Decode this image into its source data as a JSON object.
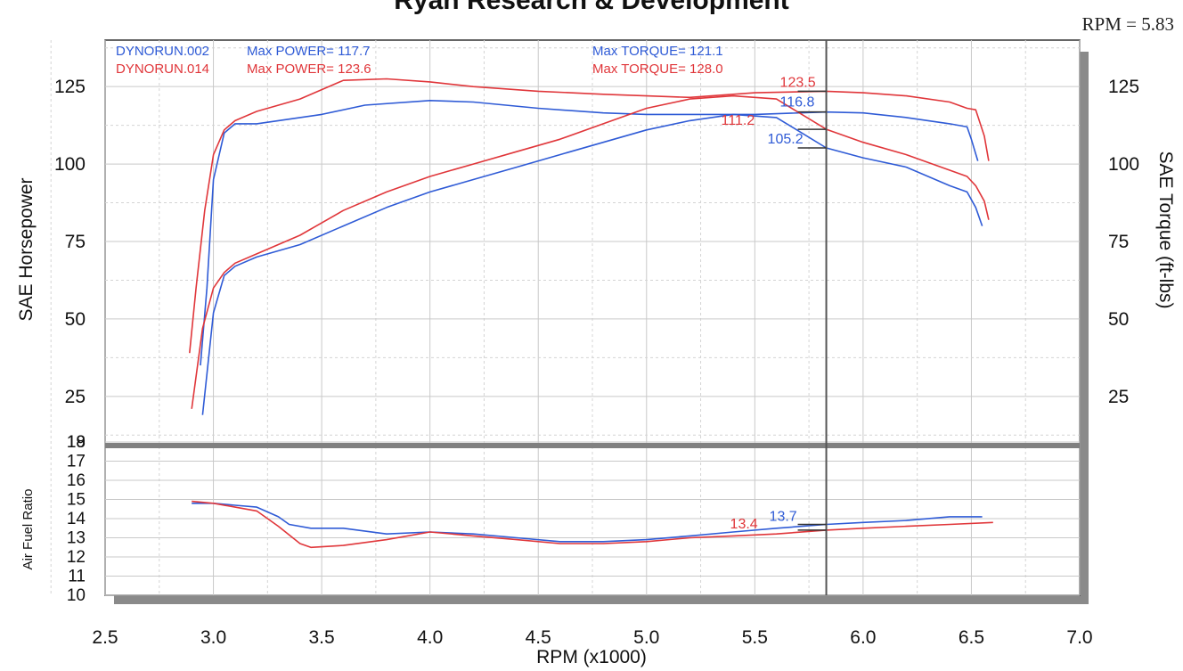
{
  "page": {
    "title": "Ryan Research & Development",
    "rpm_readout": "RPM = 5.83"
  },
  "colors": {
    "run_002": "#2f5bd6",
    "run_014": "#e0363a",
    "shadow": "#8a8a8a",
    "cursor": "#555555"
  },
  "chart_data": [
    {
      "type": "line",
      "panel": "power-torque",
      "xlabel": "RPM (x1000)",
      "ylabel": "SAE Horsepower",
      "ylabel_right": "SAE Torque (ft-lbs)",
      "xlim": [
        2.5,
        7.0
      ],
      "ylim": [
        10,
        140
      ],
      "x_ticks": [
        "2.5",
        "3.0",
        "3.5",
        "4.0",
        "4.5",
        "5.0",
        "5.5",
        "6.0",
        "6.5",
        "7.0"
      ],
      "y_ticks": [
        "25",
        "50",
        "75",
        "100",
        "125"
      ],
      "y_ticks_right": [
        "25",
        "50",
        "75",
        "100",
        "125"
      ],
      "cursor_rpm": 5.83,
      "grid": true,
      "legend": [
        {
          "run": "DYNORUN.002",
          "power_label": "Max POWER= 117.7",
          "torque_label": "Max TORQUE= 121.1",
          "color_key": "run_002"
        },
        {
          "run": "DYNORUN.014",
          "power_label": "Max POWER= 123.6",
          "torque_label": "Max TORQUE= 128.0",
          "color_key": "run_014"
        }
      ],
      "cursor_values": [
        {
          "text": "123.5",
          "value": 123.5,
          "color_key": "run_014"
        },
        {
          "text": "116.8",
          "value": 116.8,
          "color_key": "run_002"
        },
        {
          "text": "111.2",
          "value": 111.2,
          "color_key": "run_014"
        },
        {
          "text": "105.2",
          "value": 105.2,
          "color_key": "run_002"
        }
      ],
      "series": [
        {
          "name": "DYNORUN.002",
          "quantity": "torque",
          "color_key": "run_002",
          "x": [
            2.94,
            2.97,
            3.0,
            3.05,
            3.1,
            3.2,
            3.3,
            3.5,
            3.7,
            4.0,
            4.2,
            4.5,
            4.8,
            5.0,
            5.2,
            5.5,
            5.83,
            6.0,
            6.2,
            6.4,
            6.48,
            6.5,
            6.53
          ],
          "y": [
            35,
            60,
            95,
            110,
            113,
            113,
            114,
            116,
            119,
            120.5,
            120,
            118,
            116.5,
            116,
            116,
            116,
            116.8,
            116.5,
            115,
            113,
            112,
            108,
            101
          ]
        },
        {
          "name": "DYNORUN.014",
          "quantity": "torque",
          "color_key": "run_014",
          "x": [
            2.89,
            2.92,
            2.96,
            3.0,
            3.05,
            3.1,
            3.2,
            3.4,
            3.6,
            3.8,
            4.0,
            4.2,
            4.5,
            4.8,
            5.0,
            5.2,
            5.5,
            5.83,
            6.0,
            6.2,
            6.4,
            6.48,
            6.52,
            6.56,
            6.58
          ],
          "y": [
            39,
            60,
            85,
            103,
            111,
            114,
            117,
            121,
            127,
            127.5,
            126.5,
            125,
            123.5,
            122.5,
            122,
            121.5,
            123,
            123.5,
            123,
            122,
            120,
            118,
            117.5,
            109,
            101
          ]
        },
        {
          "name": "DYNORUN.002",
          "quantity": "power",
          "color_key": "run_002",
          "x": [
            2.95,
            3.0,
            3.05,
            3.1,
            3.2,
            3.4,
            3.6,
            3.8,
            4.0,
            4.2,
            4.4,
            4.6,
            4.8,
            5.0,
            5.2,
            5.4,
            5.6,
            5.83,
            6.0,
            6.2,
            6.4,
            6.48,
            6.52,
            6.55
          ],
          "y": [
            19,
            52,
            64,
            67,
            70,
            74,
            80,
            86,
            91,
            95,
            99,
            103,
            107,
            111,
            114,
            116,
            115,
            105.2,
            102,
            99,
            93,
            91,
            86,
            80
          ]
        },
        {
          "name": "DYNORUN.014",
          "quantity": "power",
          "color_key": "run_014",
          "x": [
            2.9,
            2.95,
            3.0,
            3.05,
            3.1,
            3.2,
            3.4,
            3.6,
            3.8,
            4.0,
            4.2,
            4.4,
            4.6,
            4.8,
            5.0,
            5.2,
            5.4,
            5.6,
            5.83,
            6.0,
            6.2,
            6.4,
            6.48,
            6.52,
            6.56,
            6.58
          ],
          "y": [
            21,
            47,
            60,
            65,
            68,
            71,
            77,
            85,
            91,
            96,
            100,
            104,
            108,
            113,
            118,
            121,
            122,
            121,
            111.2,
            107,
            103,
            98,
            96,
            93,
            88,
            82
          ]
        }
      ]
    },
    {
      "type": "line",
      "panel": "air-fuel",
      "xlabel": "RPM (x1000)",
      "ylabel": "Air Fuel Ratio",
      "xlim": [
        2.5,
        7.0
      ],
      "ylim": [
        10,
        18
      ],
      "y_ticks": [
        "10",
        "11",
        "12",
        "13",
        "14",
        "15",
        "16",
        "17",
        "18",
        "19"
      ],
      "cursor_values": [
        {
          "text": "13.4",
          "value": 13.4,
          "color_key": "run_014"
        },
        {
          "text": "13.7",
          "value": 13.7,
          "color_key": "run_002"
        }
      ],
      "series": [
        {
          "name": "DYNORUN.002",
          "color_key": "run_002",
          "x": [
            2.9,
            3.0,
            3.1,
            3.2,
            3.3,
            3.35,
            3.45,
            3.6,
            3.8,
            4.0,
            4.2,
            4.4,
            4.6,
            4.8,
            5.0,
            5.2,
            5.4,
            5.6,
            5.83,
            6.0,
            6.2,
            6.4,
            6.55
          ],
          "y": [
            14.8,
            14.8,
            14.7,
            14.6,
            14.1,
            13.7,
            13.5,
            13.5,
            13.2,
            13.3,
            13.2,
            13.0,
            12.8,
            12.8,
            12.9,
            13.1,
            13.3,
            13.5,
            13.7,
            13.8,
            13.9,
            14.1,
            14.1
          ]
        },
        {
          "name": "DYNORUN.014",
          "color_key": "run_014",
          "x": [
            2.9,
            3.0,
            3.1,
            3.2,
            3.3,
            3.4,
            3.45,
            3.6,
            3.8,
            4.0,
            4.2,
            4.4,
            4.6,
            4.8,
            5.0,
            5.2,
            5.4,
            5.6,
            5.83,
            6.0,
            6.2,
            6.4,
            6.6
          ],
          "y": [
            14.9,
            14.8,
            14.6,
            14.4,
            13.6,
            12.7,
            12.5,
            12.6,
            12.9,
            13.3,
            13.1,
            12.9,
            12.7,
            12.7,
            12.8,
            13.0,
            13.1,
            13.2,
            13.4,
            13.5,
            13.6,
            13.7,
            13.8
          ]
        }
      ]
    }
  ]
}
